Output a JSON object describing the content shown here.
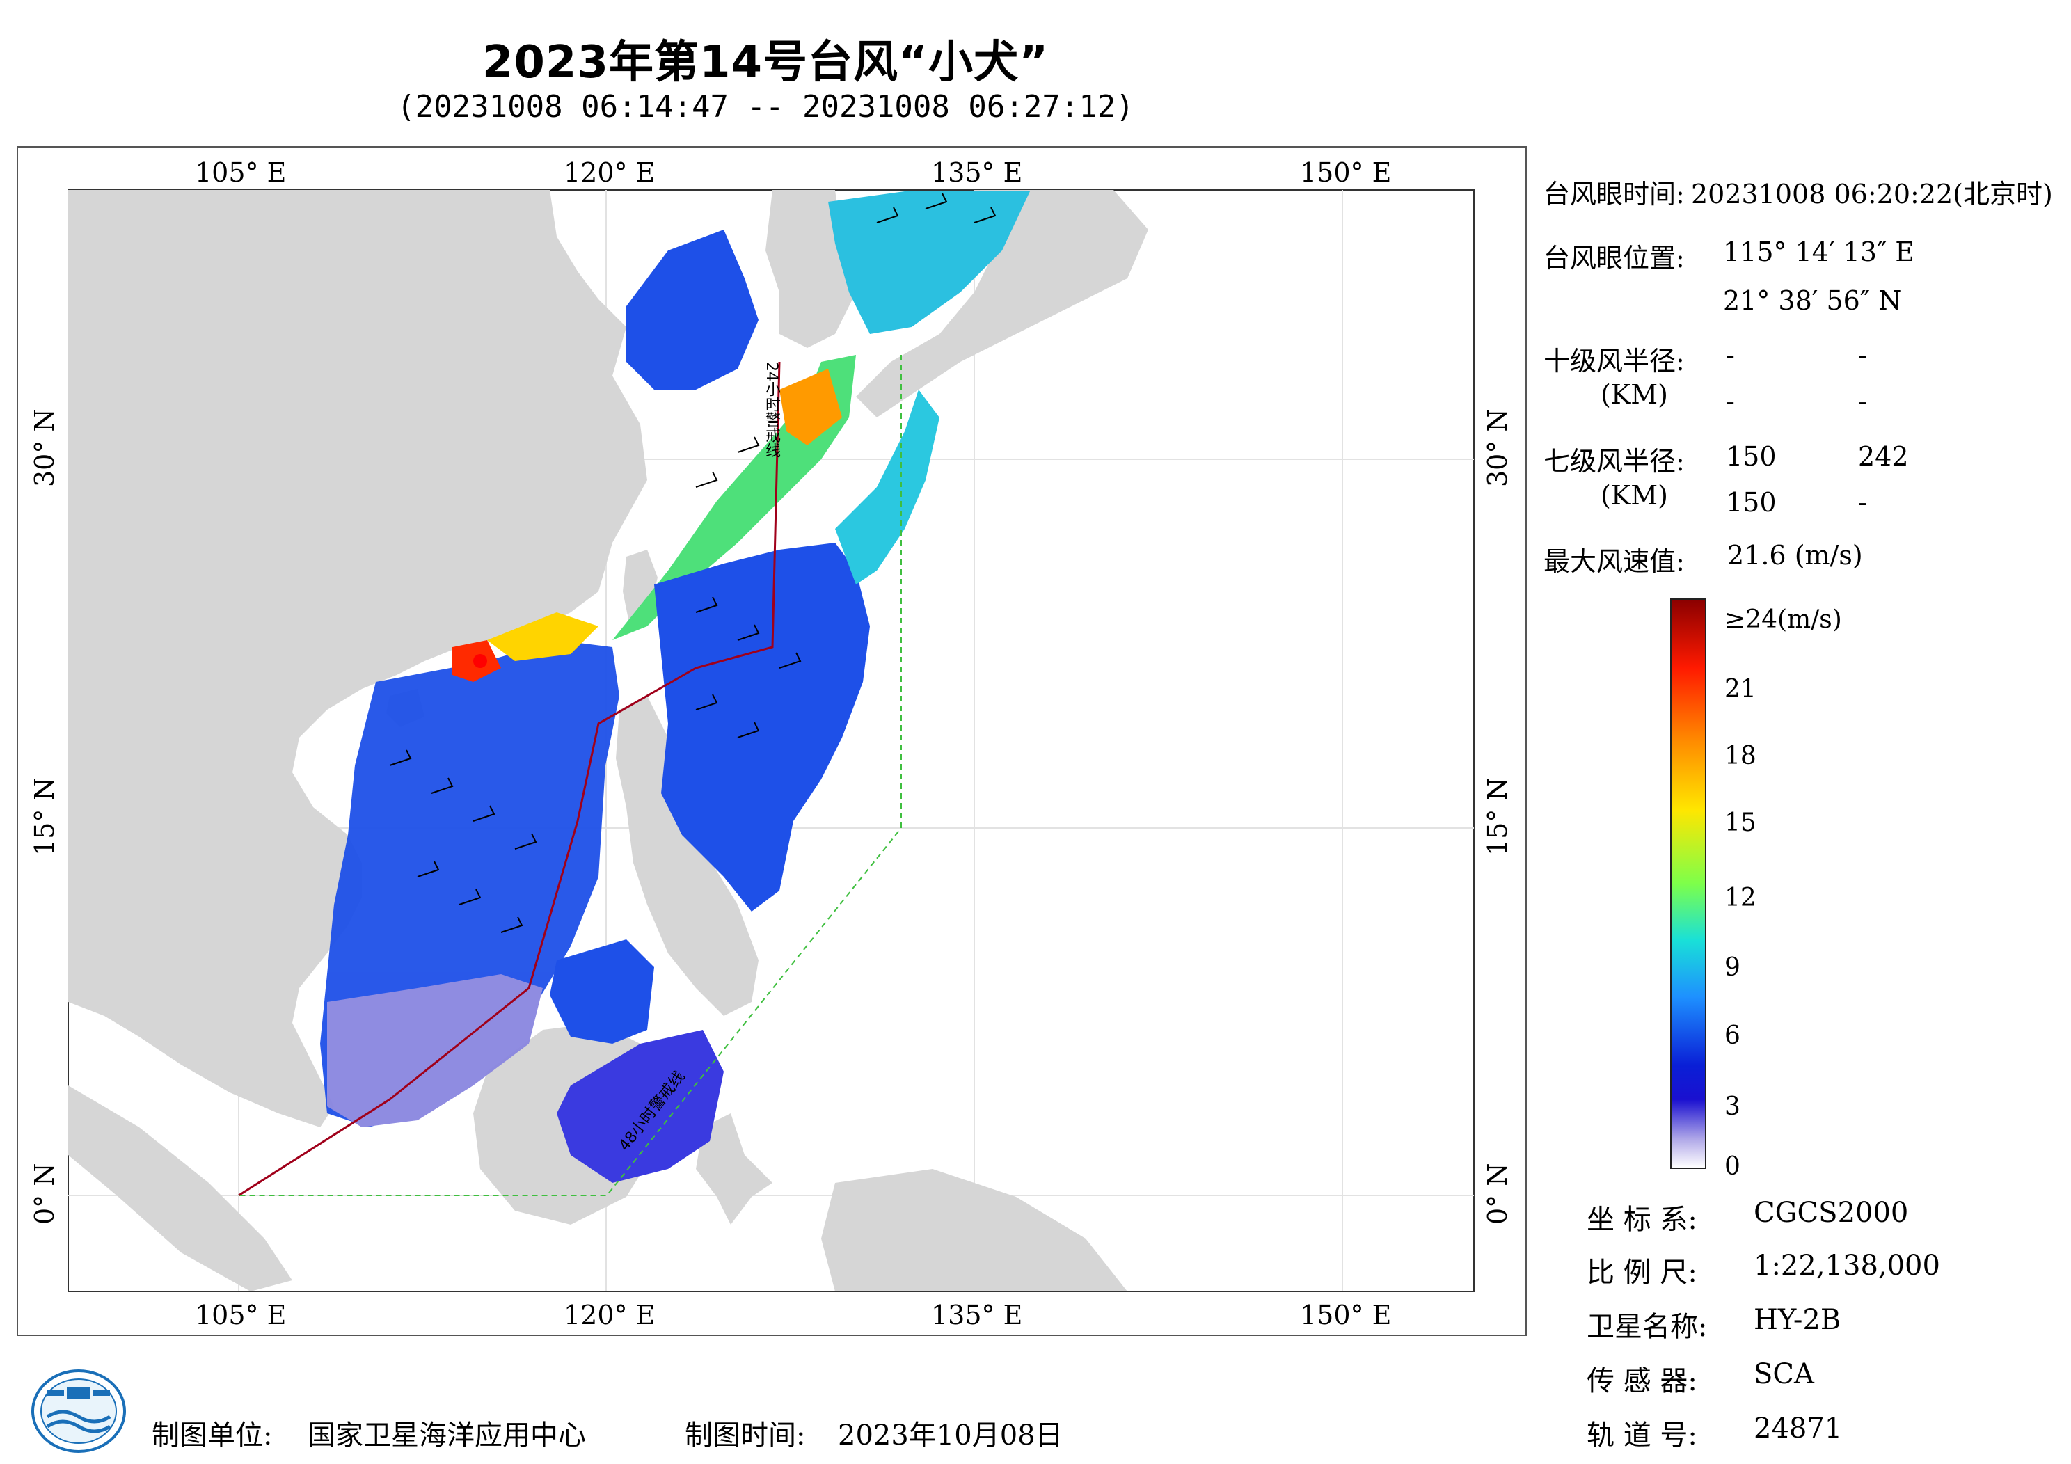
{
  "header": {
    "title": "2023年第14号台风“小犬”",
    "subtitle": "(20231008 06:14:47 -- 20231008 06:27:12)"
  },
  "axes": {
    "lon_ticks": [
      "105° E",
      "120° E",
      "135° E",
      "150° E"
    ],
    "lat_ticks": [
      "30° N",
      "15° N",
      "0° N"
    ]
  },
  "map_labels": {
    "warning_24h": "24小时警戒线",
    "warning_48h": "48小时警戒线"
  },
  "info": {
    "eye_time_label": "台风眼时间:",
    "eye_time_value": "20231008 06:20:22(北京时)",
    "eye_pos_label": "台风眼位置:",
    "eye_lon": "115° 14′ 13″ E",
    "eye_lat": "21° 38′ 56″ N",
    "r10_label": "十级风半径:",
    "r10_unit": "(KM)",
    "r10_values": [
      "-",
      "-",
      "-",
      "-"
    ],
    "r7_label": "七级风半径:",
    "r7_unit": "(KM)",
    "r7_values": [
      "150",
      "242",
      "150",
      "-"
    ],
    "max_wind_label": "最大风速值:",
    "max_wind_value": "21.6  (m/s)"
  },
  "legend": {
    "top_label": "≥24(m/s)",
    "ticks": [
      "21",
      "18",
      "15",
      "12",
      "9",
      "6",
      "3",
      "0"
    ],
    "colors": [
      "#8b0000",
      "#ff1a00",
      "#ff8c00",
      "#ffe600",
      "#7dff4a",
      "#19e0d8",
      "#1e90ff",
      "#0a1fd6",
      "#1a10d0",
      "#b0a8e8",
      "#ffffff"
    ]
  },
  "meta": {
    "coord_label": "坐 标 系:",
    "coord_value": "CGCS2000",
    "scale_label": "比 例 尺:",
    "scale_value": "1:22,138,000",
    "sat_label": "卫星名称:",
    "sat_value": "HY-2B",
    "sensor_label": "传 感 器:",
    "sensor_value": "SCA",
    "orbit_label": "轨 道 号:",
    "orbit_value": "24871"
  },
  "footer": {
    "org_label": "制图单位:",
    "org_value": "国家卫星海洋应用中心",
    "time_label": "制图时间:",
    "time_value": "2023年10月08日"
  }
}
